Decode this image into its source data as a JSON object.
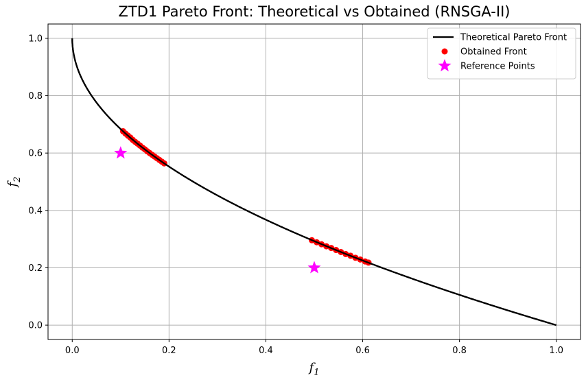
{
  "chart_data": {
    "type": "scatter",
    "title": "ZTD1 Pareto Front: Theoretical vs Obtained (RNSGA-II)",
    "xlabel": "f",
    "xlabel_sub": "1",
    "ylabel": "f",
    "ylabel_sub": "2",
    "xlim": [
      -0.05,
      1.05
    ],
    "ylim": [
      -0.05,
      1.05
    ],
    "xticks": [
      0.0,
      0.2,
      0.4,
      0.6,
      0.8,
      1.0
    ],
    "xtick_labels": [
      "0.0",
      "0.2",
      "0.4",
      "0.6",
      "0.8",
      "1.0"
    ],
    "yticks": [
      0.0,
      0.2,
      0.4,
      0.6,
      0.8,
      1.0
    ],
    "ytick_labels": [
      "0.0",
      "0.2",
      "0.4",
      "0.6",
      "0.8",
      "1.0"
    ],
    "grid": true,
    "legend_position": "top-right",
    "series": [
      {
        "name": "Theoretical Pareto Front",
        "type": "line",
        "color": "#000000",
        "function": "f2 = 1 - sqrt(f1)",
        "x_range": [
          0.0,
          1.0
        ]
      },
      {
        "name": "Obtained Front",
        "type": "scatter",
        "color": "#ff0000",
        "x": [
          0.105,
          0.11,
          0.115,
          0.12,
          0.125,
          0.13,
          0.135,
          0.14,
          0.145,
          0.15,
          0.155,
          0.16,
          0.165,
          0.17,
          0.175,
          0.18,
          0.185,
          0.19,
          0.495,
          0.505,
          0.515,
          0.525,
          0.535,
          0.545,
          0.555,
          0.565,
          0.575,
          0.585,
          0.595,
          0.605,
          0.612
        ],
        "y": [
          0.676,
          0.668,
          0.661,
          0.654,
          0.646,
          0.639,
          0.633,
          0.626,
          0.619,
          0.613,
          0.606,
          0.6,
          0.594,
          0.588,
          0.582,
          0.576,
          0.57,
          0.564,
          0.296,
          0.289,
          0.282,
          0.275,
          0.269,
          0.262,
          0.255,
          0.248,
          0.242,
          0.235,
          0.229,
          0.222,
          0.218
        ]
      },
      {
        "name": "Reference Points",
        "type": "scatter",
        "marker": "star",
        "color": "#ff00ff",
        "x": [
          0.1,
          0.5
        ],
        "y": [
          0.6,
          0.2
        ]
      }
    ]
  }
}
